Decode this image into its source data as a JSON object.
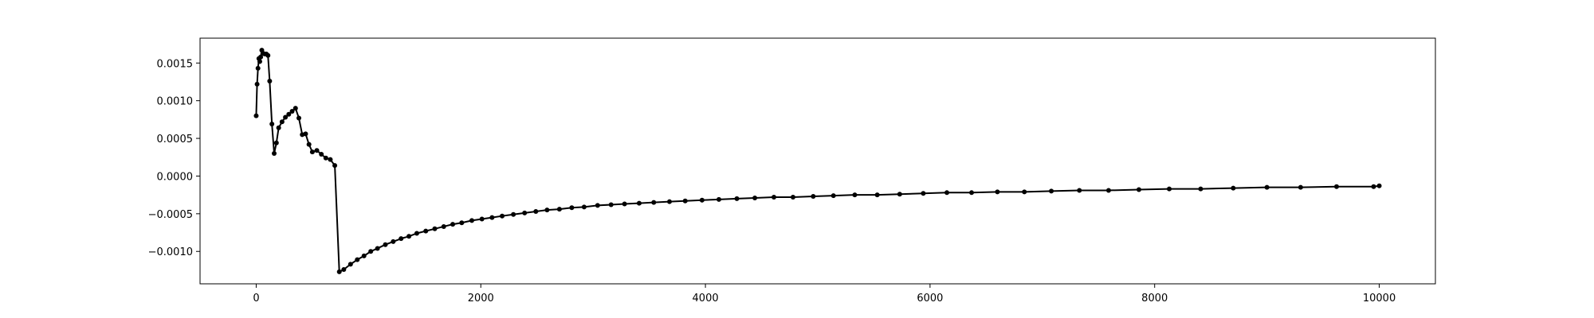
{
  "chart_data": {
    "type": "line",
    "title": "",
    "xlabel": "",
    "ylabel": "",
    "xlim": [
      -500,
      10500
    ],
    "ylim": [
      -0.00143,
      0.00183
    ],
    "grid": false,
    "legend": "none",
    "line_color": "#000000",
    "marker": "dot",
    "x_ticks": [
      {
        "value": 0,
        "label": "0"
      },
      {
        "value": 2000,
        "label": "2000"
      },
      {
        "value": 4000,
        "label": "4000"
      },
      {
        "value": 6000,
        "label": "6000"
      },
      {
        "value": 8000,
        "label": "8000"
      },
      {
        "value": 10000,
        "label": "10000"
      }
    ],
    "y_ticks": [
      {
        "value": 0.0015,
        "label": "0.0015"
      },
      {
        "value": 0.001,
        "label": "0.0010"
      },
      {
        "value": 0.0005,
        "label": "0.0005"
      },
      {
        "value": 0.0,
        "label": "0.0000"
      },
      {
        "value": -0.0005,
        "label": "−0.0005"
      },
      {
        "value": -0.001,
        "label": "−0.0010"
      }
    ],
    "series": [
      {
        "x": [
          0,
          8,
          16,
          24,
          32,
          40,
          50,
          60,
          75,
          90,
          105,
          120,
          140,
          160,
          180,
          200,
          230,
          260,
          290,
          320,
          350,
          380,
          410,
          440,
          470,
          500,
          540,
          580,
          620,
          660,
          700,
          740,
          780,
          840,
          900,
          960,
          1020,
          1080,
          1150,
          1220,
          1290,
          1360,
          1430,
          1510,
          1590,
          1670,
          1750,
          1830,
          1920,
          2010,
          2100,
          2190,
          2290,
          2390,
          2490,
          2590,
          2700,
          2810,
          2920,
          3040,
          3160,
          3280,
          3410,
          3540,
          3680,
          3820,
          3970,
          4120,
          4280,
          4440,
          4610,
          4780,
          4960,
          5140,
          5330,
          5530,
          5730,
          5940,
          6150,
          6370,
          6600,
          6840,
          7080,
          7330,
          7590,
          7860,
          8130,
          8410,
          8700,
          9000,
          9300,
          9620,
          9950,
          10000
        ],
        "y": [
          0.0008,
          0.00122,
          0.00143,
          0.00156,
          0.00152,
          0.00158,
          0.00167,
          0.00163,
          0.00162,
          0.00162,
          0.0016,
          0.00126,
          0.00069,
          0.0003,
          0.00044,
          0.00064,
          0.00072,
          0.00078,
          0.00082,
          0.00086,
          0.0009,
          0.00077,
          0.00055,
          0.00056,
          0.00042,
          0.00032,
          0.00034,
          0.00029,
          0.00024,
          0.00022,
          0.00014,
          -0.00127,
          -0.00124,
          -0.00117,
          -0.00111,
          -0.00106,
          -0.001,
          -0.00096,
          -0.00091,
          -0.00087,
          -0.00083,
          -0.0008,
          -0.00076,
          -0.00073,
          -0.0007,
          -0.00067,
          -0.00064,
          -0.00062,
          -0.00059,
          -0.00057,
          -0.00055,
          -0.00053,
          -0.00051,
          -0.00049,
          -0.00047,
          -0.00045,
          -0.00044,
          -0.00042,
          -0.00041,
          -0.00039,
          -0.00038,
          -0.00037,
          -0.00036,
          -0.00035,
          -0.00034,
          -0.00033,
          -0.00032,
          -0.00031,
          -0.0003,
          -0.00029,
          -0.00028,
          -0.00028,
          -0.00027,
          -0.00026,
          -0.00025,
          -0.00025,
          -0.00024,
          -0.00023,
          -0.00022,
          -0.00022,
          -0.00021,
          -0.00021,
          -0.0002,
          -0.00019,
          -0.00019,
          -0.00018,
          -0.00017,
          -0.00017,
          -0.00016,
          -0.00015,
          -0.00015,
          -0.00014,
          -0.00014,
          -0.00013
        ]
      }
    ]
  }
}
